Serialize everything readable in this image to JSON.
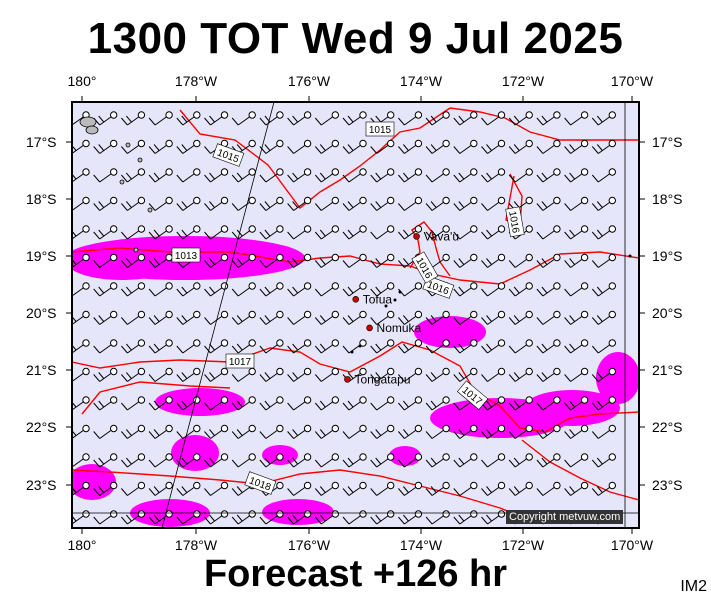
{
  "header": {
    "title": "1300 TOT Wed 9 Jul 2025"
  },
  "footer": {
    "subtitle": "Forecast +126 hr",
    "badge": "IM2",
    "copyright": "Copyright metvuw.com"
  },
  "map": {
    "background_color": "#e6e6fa",
    "rain_color": "#ff00ff",
    "isobar_color": "#ff0000",
    "lon_labels": [
      "180°",
      "178°W",
      "176°W",
      "174°W",
      "172°W",
      "170°W"
    ],
    "lat_labels": [
      "17°S",
      "18°S",
      "19°S",
      "20°S",
      "21°S",
      "22°S",
      "23°S"
    ],
    "isobar_labels": [
      "1015",
      "1015",
      "1016",
      "1013",
      "1016",
      "1016",
      "1017",
      "1017",
      "1018"
    ],
    "places": [
      {
        "name": "Vava'u",
        "lon": -173.95,
        "lat": -18.65
      },
      {
        "name": "Tofua",
        "lon": -175.05,
        "lat": -19.75
      },
      {
        "name": "Nomuka",
        "lon": -174.8,
        "lat": -20.25
      },
      {
        "name": "Tongatapu",
        "lon": -175.2,
        "lat": -21.15
      }
    ]
  }
}
